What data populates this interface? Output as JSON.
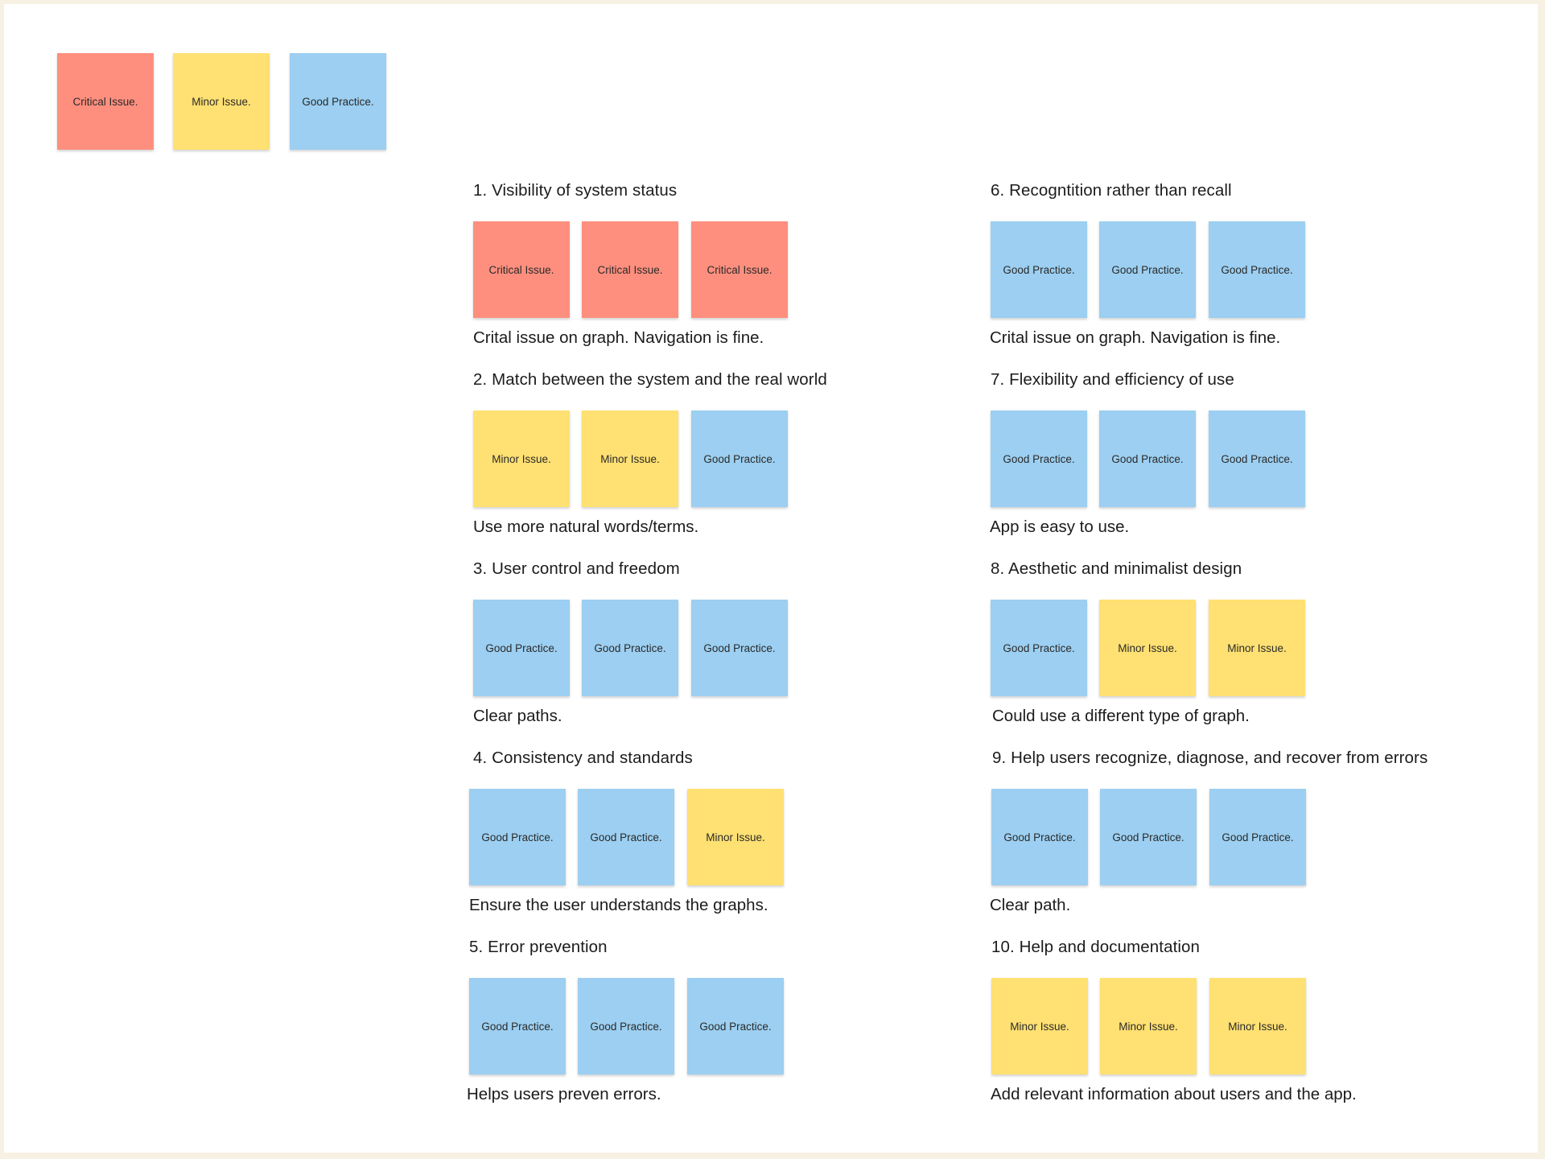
{
  "legend": {
    "critical": "Critical Issue.",
    "minor": "Minor Issue.",
    "good": "Good Practice."
  },
  "colors": {
    "critical": "#fe8f7e",
    "minor": "#ffe072",
    "good": "#9ccff1",
    "background": "#f7f1e4"
  },
  "sections": [
    {
      "title": "1. Visibility of system status",
      "notes": [
        {
          "type": "critical",
          "label": "Critical Issue."
        },
        {
          "type": "critical",
          "label": "Critical Issue."
        },
        {
          "type": "critical",
          "label": "Critical Issue."
        }
      ],
      "comment": "Crital issue on graph. Navigation is fine."
    },
    {
      "title": "2. Match between the system and the real world",
      "notes": [
        {
          "type": "minor",
          "label": "Minor Issue."
        },
        {
          "type": "minor",
          "label": "Minor Issue."
        },
        {
          "type": "good",
          "label": "Good Practice."
        }
      ],
      "comment": "Use more natural words/terms."
    },
    {
      "title": "3. User control and freedom",
      "notes": [
        {
          "type": "good",
          "label": "Good Practice."
        },
        {
          "type": "good",
          "label": "Good Practice."
        },
        {
          "type": "good",
          "label": "Good Practice."
        }
      ],
      "comment": "Clear paths."
    },
    {
      "title": "4. Consistency and standards",
      "notes": [
        {
          "type": "good",
          "label": "Good Practice."
        },
        {
          "type": "good",
          "label": "Good Practice."
        },
        {
          "type": "minor",
          "label": "Minor Issue."
        }
      ],
      "comment": "Ensure the user understands the graphs."
    },
    {
      "title": "5. Error prevention",
      "notes": [
        {
          "type": "good",
          "label": "Good Practice."
        },
        {
          "type": "good",
          "label": "Good Practice."
        },
        {
          "type": "good",
          "label": "Good Practice."
        }
      ],
      "comment": "Helps users preven errors."
    },
    {
      "title": "6. Recogntition rather than recall",
      "notes": [
        {
          "type": "good",
          "label": "Good Practice."
        },
        {
          "type": "good",
          "label": "Good Practice."
        },
        {
          "type": "good",
          "label": "Good Practice."
        }
      ],
      "comment": "Crital issue on graph. Navigation is fine."
    },
    {
      "title": "7. Flexibility and efficiency of use",
      "notes": [
        {
          "type": "good",
          "label": "Good Practice."
        },
        {
          "type": "good",
          "label": "Good Practice."
        },
        {
          "type": "good",
          "label": "Good Practice."
        }
      ],
      "comment": "App is easy to use."
    },
    {
      "title": "8. Aesthetic and minimalist design",
      "notes": [
        {
          "type": "good",
          "label": "Good Practice."
        },
        {
          "type": "minor",
          "label": "Minor Issue."
        },
        {
          "type": "minor",
          "label": "Minor Issue."
        }
      ],
      "comment": "Could use a different type of graph."
    },
    {
      "title": "9. Help users recognize, diagnose, and recover from errors",
      "notes": [
        {
          "type": "good",
          "label": "Good Practice."
        },
        {
          "type": "good",
          "label": "Good Practice."
        },
        {
          "type": "good",
          "label": "Good Practice."
        }
      ],
      "comment": "Clear path."
    },
    {
      "title": "10. Help and documentation",
      "notes": [
        {
          "type": "minor",
          "label": "Minor Issue."
        },
        {
          "type": "minor",
          "label": "Minor Issue."
        },
        {
          "type": "minor",
          "label": "Minor Issue."
        }
      ],
      "comment": "Add relevant information about users and the app."
    }
  ]
}
